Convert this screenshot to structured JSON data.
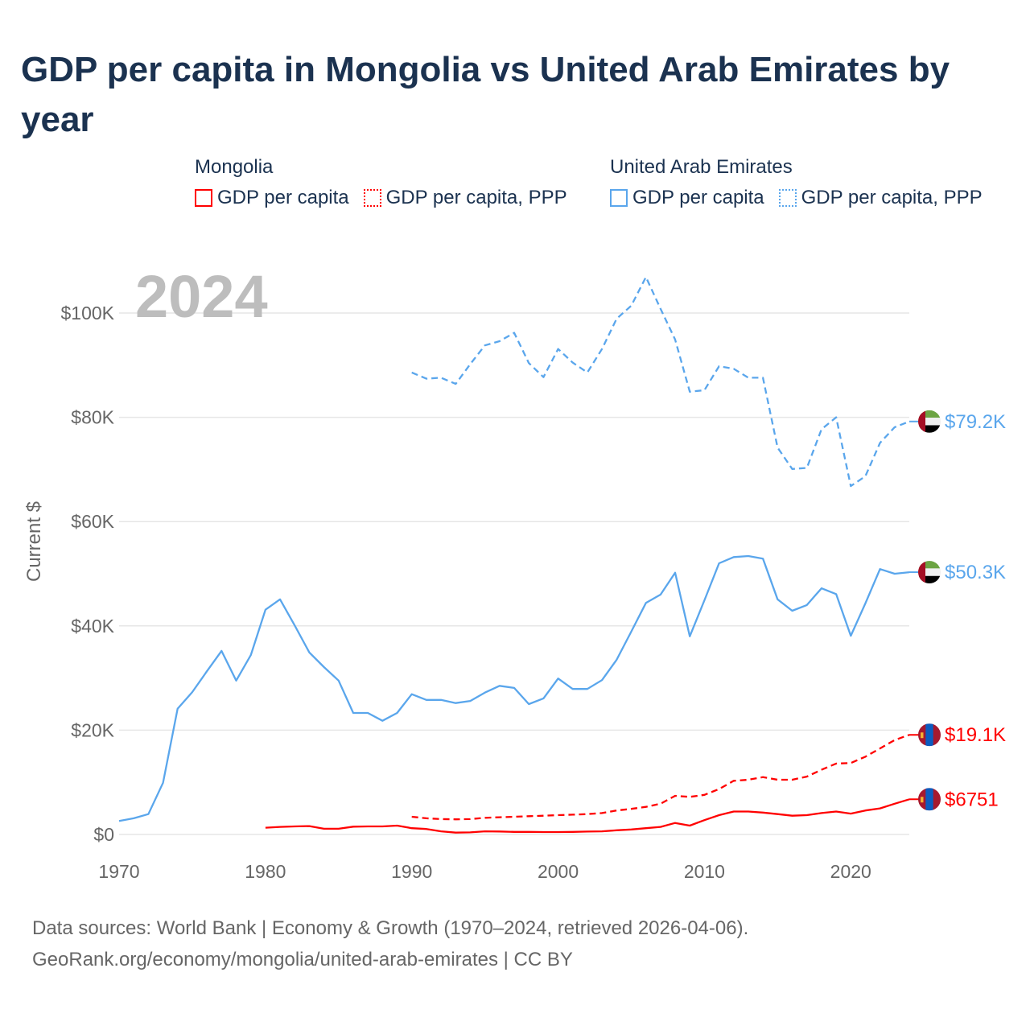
{
  "title": "GDP per capita in Mongolia vs United Arab Emirates by year",
  "legend": {
    "groups": [
      {
        "name": "Mongolia",
        "items": [
          {
            "label": "GDP per capita",
            "style": "solid",
            "color": "#ff0000"
          },
          {
            "label": "GDP per capita, PPP",
            "style": "dotted",
            "color": "#ff0000"
          }
        ]
      },
      {
        "name": "United Arab Emirates",
        "items": [
          {
            "label": "GDP per capita",
            "style": "solid",
            "color": "#5aa6ec"
          },
          {
            "label": "GDP per capita, PPP",
            "style": "dotted",
            "color": "#5aa6ec"
          }
        ]
      }
    ]
  },
  "year_watermark": "2024",
  "footer": {
    "line1": "Data sources: World Bank | Economy & Growth (1970–2024, retrieved 2026-04-06).",
    "line2": "GeoRank.org/economy/mongolia/united-arab-emirates | CC BY"
  },
  "chart_data": {
    "type": "line",
    "title": "GDP per capita in Mongolia vs United Arab Emirates by year",
    "xlabel": "",
    "ylabel": "Current $",
    "xlim": [
      1970,
      2024
    ],
    "ylim": [
      0,
      110000
    ],
    "grid": true,
    "x_ticks": [
      1970,
      1980,
      1990,
      2000,
      2010,
      2020
    ],
    "x_tick_labels": [
      "1970",
      "1980",
      "1990",
      "2000",
      "2010",
      "2020"
    ],
    "y_ticks": [
      0,
      20000,
      40000,
      60000,
      80000,
      100000
    ],
    "y_tick_labels": [
      "$0",
      "$20K",
      "$40K",
      "$60K",
      "$80K",
      "$100K"
    ],
    "legend_position": "top",
    "series": [
      {
        "name": "United Arab Emirates GDP per capita, PPP",
        "country": "United Arab Emirates",
        "color": "#5aa6ec",
        "dash": "dashed",
        "end_label": "$79.2K",
        "start_year": 1990,
        "values": [
          88600,
          87400,
          87600,
          86400,
          90200,
          93800,
          94600,
          96200,
          90400,
          87700,
          93100,
          90500,
          88600,
          93100,
          98900,
          101400,
          106900,
          100800,
          94900,
          84900,
          85200,
          89800,
          89300,
          87600,
          87600,
          74200,
          70100,
          70300,
          77700,
          80000,
          66800,
          68700,
          75100,
          78100,
          79200
        ]
      },
      {
        "name": "United Arab Emirates GDP per capita",
        "country": "United Arab Emirates",
        "color": "#5aa6ec",
        "dash": "solid",
        "end_label": "$50.3K",
        "start_year": 1970,
        "values": [
          2600,
          3100,
          3900,
          9900,
          24100,
          27300,
          31300,
          35200,
          29500,
          34400,
          43100,
          45100,
          40100,
          34900,
          32100,
          29500,
          23300,
          23300,
          21800,
          23300,
          26900,
          25800,
          25800,
          25200,
          25600,
          27200,
          28500,
          28100,
          25000,
          26100,
          29900,
          27900,
          27900,
          29600,
          33500,
          38900,
          44400,
          46000,
          50200,
          38000,
          44900,
          52000,
          53200,
          53400,
          52900,
          45100,
          42900,
          44000,
          47200,
          46100,
          38100,
          44300,
          50900,
          50000,
          50300
        ]
      },
      {
        "name": "Mongolia GDP per capita, PPP",
        "country": "Mongolia",
        "color": "#ff0000",
        "dash": "dashed",
        "end_label": "$19.1K",
        "start_year": 1990,
        "values": [
          3400,
          3100,
          2950,
          2900,
          2950,
          3200,
          3300,
          3400,
          3500,
          3600,
          3700,
          3800,
          3900,
          4100,
          4600,
          4900,
          5300,
          5900,
          7400,
          7200,
          7600,
          8700,
          10300,
          10500,
          11000,
          10500,
          10500,
          11100,
          12400,
          13600,
          13700,
          14900,
          16500,
          18100,
          19100
        ]
      },
      {
        "name": "Mongolia GDP per capita",
        "country": "Mongolia",
        "color": "#ff0000",
        "dash": "solid",
        "end_label": "$6751",
        "start_year": 1980,
        "values": [
          1300,
          1450,
          1550,
          1600,
          1100,
          1100,
          1500,
          1550,
          1550,
          1700,
          1200,
          1050,
          600,
          350,
          400,
          600,
          570,
          500,
          500,
          470,
          470,
          500,
          550,
          600,
          800,
          950,
          1200,
          1450,
          2200,
          1700,
          2750,
          3700,
          4400,
          4400,
          4200,
          3900,
          3600,
          3700,
          4100,
          4400,
          4000,
          4600,
          5000,
          5900,
          6751
        ]
      }
    ]
  }
}
